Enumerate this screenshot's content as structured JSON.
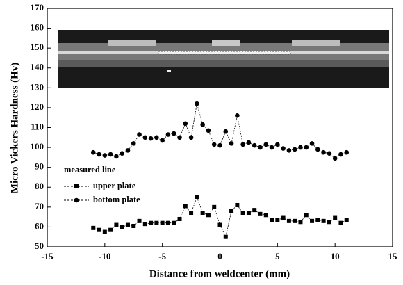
{
  "chart_data": {
    "type": "line",
    "xlabel": "Distance from weldcenter (mm)",
    "ylabel": "Micro Vickers Hardness (Hv)",
    "xlim": [
      -15,
      15
    ],
    "xticks": [
      -15,
      -10,
      -5,
      0,
      5,
      10,
      15
    ],
    "ylim": [
      50,
      170
    ],
    "yticks": [
      50,
      60,
      70,
      80,
      90,
      100,
      110,
      120,
      130,
      140,
      150,
      160,
      170
    ],
    "legend_title": "measured line",
    "x": [
      -11,
      -10.5,
      -10,
      -9.5,
      -9,
      -8.5,
      -8,
      -7.5,
      -7,
      -6.5,
      -6,
      -5.5,
      -5,
      -4.5,
      -4,
      -3.5,
      -3,
      -2.5,
      -2,
      -1.5,
      -1,
      -0.5,
      0,
      0.5,
      1,
      1.5,
      2,
      2.5,
      3,
      3.5,
      4,
      4.5,
      5,
      5.5,
      6,
      6.5,
      7,
      7.5,
      8,
      8.5,
      9,
      9.5,
      10,
      10.5,
      11
    ],
    "series": [
      {
        "name": "upper plate",
        "color": "#000000",
        "marker": "square",
        "values": [
          59.5,
          58.5,
          57.5,
          58.5,
          61,
          60,
          61,
          60.5,
          63,
          61.5,
          62,
          62,
          62,
          62,
          62,
          64,
          70.5,
          67,
          75,
          67,
          66,
          70,
          61,
          55,
          68,
          71,
          67,
          67,
          68.5,
          66.5,
          66,
          63.5,
          63.5,
          64.5,
          63,
          63,
          62.5,
          66,
          63,
          63.5,
          63,
          62.5,
          64.5,
          62,
          63.5
        ]
      },
      {
        "name": "bottom plate",
        "color": "#000000",
        "marker": "circle",
        "values": [
          97.5,
          96.5,
          96,
          96.5,
          95.5,
          97,
          98.5,
          102,
          106.5,
          105,
          104.5,
          105,
          103.5,
          106.5,
          107,
          105,
          112,
          105,
          122,
          111.5,
          108.5,
          101.5,
          101,
          108,
          102,
          116,
          101.5,
          102.5,
          101,
          100,
          101.5,
          100,
          101.5,
          99.5,
          98.5,
          99,
          100,
          100,
          102,
          99,
          97.5,
          97,
          94.5,
          96.5,
          97.5
        ]
      }
    ]
  }
}
